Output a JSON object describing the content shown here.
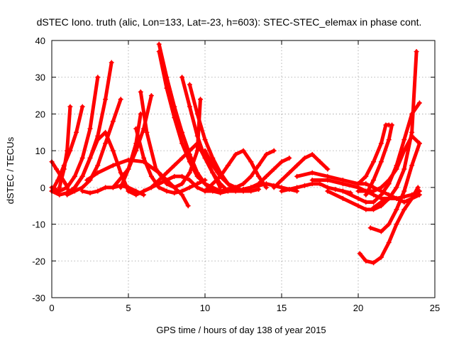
{
  "chart_data": {
    "type": "scatter",
    "title": "dSTEC Iono. truth (alic, Lon=133, Lat=-23, h=603): STEC-STEC_elemax in phase cont.",
    "xlabel": "GPS time / hours of day 138 of year 2015",
    "ylabel": "dSTEC  / TECUs",
    "xlim": [
      0,
      25
    ],
    "ylim": [
      -30,
      40
    ],
    "xticks": [
      0,
      5,
      10,
      15,
      20,
      25
    ],
    "yticks": [
      -30,
      -20,
      -10,
      0,
      10,
      20,
      30,
      40
    ],
    "grid": true,
    "marker": "+",
    "color": "#ff0000",
    "series": [
      {
        "x": [
          0,
          0.3,
          0.6,
          0.9,
          1.1
        ],
        "y": [
          7,
          5,
          3,
          1,
          -1
        ]
      },
      {
        "x": [
          0,
          0.4,
          0.8,
          1.2,
          1.6,
          2.0
        ],
        "y": [
          -1,
          2,
          6,
          10,
          15,
          22
        ]
      },
      {
        "x": [
          0,
          0.5,
          1.0,
          1.5,
          2.0,
          2.5,
          3.0
        ],
        "y": [
          0,
          -1,
          0,
          3,
          8,
          16,
          30
        ]
      },
      {
        "x": [
          0,
          0.5,
          1.0,
          1.5,
          2.0,
          2.5,
          3.0,
          3.5,
          3.9
        ],
        "y": [
          -1,
          -2,
          -1.5,
          0,
          3,
          8,
          14,
          24,
          34
        ]
      },
      {
        "x": [
          0.5,
          0.8,
          1.0,
          1.2
        ],
        "y": [
          0,
          5,
          10,
          22
        ]
      },
      {
        "x": [
          1.0,
          1.5,
          2.0,
          2.5,
          3.0,
          3.5,
          4.0,
          4.5
        ],
        "y": [
          -2,
          -1,
          0,
          2,
          6,
          12,
          18,
          24
        ]
      },
      {
        "x": [
          1.5,
          2.0,
          2.5,
          3.0,
          3.5,
          4.0,
          4.5,
          5.0
        ],
        "y": [
          0,
          3,
          8,
          13,
          15,
          10,
          4,
          -1
        ]
      },
      {
        "x": [
          2.0,
          2.5,
          3.0,
          3.5,
          4.0,
          4.5,
          5.0,
          5.5,
          6.0
        ],
        "y": [
          -1,
          -1.5,
          -1,
          0,
          0,
          0.5,
          0,
          -1,
          -2
        ]
      },
      {
        "x": [
          2.3,
          3,
          4,
          5,
          6,
          7,
          8,
          8.5,
          8.9
        ],
        "y": [
          2,
          4,
          6,
          7.5,
          7,
          4,
          0,
          -2,
          -5
        ]
      },
      {
        "x": [
          4,
          5,
          5.5,
          6,
          6.5
        ],
        "y": [
          0,
          5,
          10,
          16,
          25
        ]
      },
      {
        "x": [
          4.5,
          5,
          5.5,
          5.8
        ],
        "y": [
          0,
          5,
          12,
          20
        ]
      },
      {
        "x": [
          5,
          5.5,
          6,
          6.5,
          7,
          7.5,
          8,
          8.5,
          9,
          9.5,
          10,
          10.5
        ],
        "y": [
          -1,
          -2,
          -1,
          0,
          1,
          2,
          3,
          3,
          2,
          0,
          -1,
          -1
        ]
      },
      {
        "x": [
          5.5,
          6,
          6.5,
          7,
          7.5,
          8,
          8.5,
          9,
          9.5,
          10
        ],
        "y": [
          16,
          8,
          3,
          0,
          -1,
          -1.5,
          -1,
          0,
          1,
          2
        ]
      },
      {
        "x": [
          5.8,
          6.2,
          6.8,
          7.5,
          8,
          8.5,
          9,
          9.5,
          9.7
        ],
        "y": [
          26,
          15,
          5,
          1,
          0,
          1,
          4,
          10,
          24
        ]
      },
      {
        "x": [
          6,
          6.5,
          7,
          7.5,
          8,
          8.5,
          9,
          9.5,
          10,
          10.5,
          11
        ],
        "y": [
          -1,
          0,
          2,
          4,
          6,
          8,
          10,
          12,
          8,
          4,
          0
        ]
      },
      {
        "x": [
          7,
          7.5,
          8,
          8.5,
          9,
          9.5,
          10,
          10.5,
          11,
          11.5
        ],
        "y": [
          39,
          30,
          22,
          15,
          9,
          4,
          1,
          -1,
          -1.5,
          -1
        ]
      },
      {
        "x": [
          7,
          7.5,
          8,
          8.5,
          9,
          9.5,
          10,
          10.5,
          11,
          11.5,
          12
        ],
        "y": [
          37,
          27,
          19,
          12,
          7,
          3,
          1,
          0,
          -1,
          -0.5,
          0
        ]
      },
      {
        "x": [
          8.5,
          9,
          9.5,
          10,
          10.5,
          11,
          11.5,
          12
        ],
        "y": [
          30,
          22,
          14,
          8,
          4,
          1,
          -1,
          -1
        ]
      },
      {
        "x": [
          9,
          9.5,
          10,
          10.5,
          11,
          11.5,
          12,
          12.5
        ],
        "y": [
          28,
          20,
          13,
          8,
          4,
          1,
          -1,
          -1
        ]
      },
      {
        "x": [
          10,
          10.5,
          11,
          11.5,
          12,
          12.5,
          13,
          13.5
        ],
        "y": [
          10,
          6,
          3,
          1,
          0,
          -1,
          -1,
          -0.5
        ]
      },
      {
        "x": [
          10,
          11,
          11.5,
          12,
          12.5,
          13,
          13.5,
          14
        ],
        "y": [
          -1,
          3,
          6,
          9,
          10,
          7,
          3,
          0
        ]
      },
      {
        "x": [
          11,
          11.5,
          12,
          12.5,
          13,
          13.5,
          14,
          14.5
        ],
        "y": [
          -1,
          -1,
          0,
          1,
          3,
          6,
          9,
          10
        ]
      },
      {
        "x": [
          12,
          12.5,
          13,
          13.5,
          14,
          14.5,
          15,
          15.5
        ],
        "y": [
          -1,
          -0.5,
          0,
          1,
          3,
          5,
          7,
          8
        ]
      },
      {
        "x": [
          12.5,
          13,
          13.5,
          14,
          14.5,
          15,
          15.5,
          16
        ],
        "y": [
          -0.5,
          0,
          0.5,
          1,
          0.5,
          0,
          -0.5,
          -1
        ]
      },
      {
        "x": [
          14.5,
          15,
          15.5,
          16,
          16.5,
          17,
          17.5,
          18
        ],
        "y": [
          0,
          2,
          4,
          6,
          8,
          9,
          7,
          5
        ]
      },
      {
        "x": [
          15,
          15.5,
          16,
          16.5,
          17,
          17.5,
          18,
          18.5,
          19,
          19.5
        ],
        "y": [
          -1,
          -0.5,
          0,
          0.5,
          1,
          1,
          0,
          -0.5,
          -1,
          -1.5
        ]
      },
      {
        "x": [
          16,
          17,
          18,
          19,
          20,
          20.5,
          21,
          21.5,
          22,
          22.5,
          23,
          23.5,
          24
        ],
        "y": [
          3,
          4,
          3,
          2,
          1,
          1,
          0,
          -1,
          -2,
          -3,
          -4,
          -3,
          -2
        ]
      },
      {
        "x": [
          17,
          18,
          19,
          20,
          20.5,
          21,
          21.5,
          22
        ],
        "y": [
          2,
          2,
          1,
          0,
          -1,
          -2,
          -3,
          -3
        ]
      },
      {
        "x": [
          18,
          19,
          20,
          20.5,
          21,
          21.5,
          22,
          22.5,
          23,
          23.5,
          23.8
        ],
        "y": [
          -1,
          -3,
          -5,
          -6,
          -6,
          -5,
          -3,
          0,
          5,
          15,
          37
        ]
      },
      {
        "x": [
          19,
          20,
          20.5,
          21,
          21.5,
          22,
          22.5,
          23,
          23.5,
          24
        ],
        "y": [
          -1,
          -3,
          -4,
          -4,
          -2,
          1,
          6,
          13,
          20,
          23
        ]
      },
      {
        "x": [
          20,
          20.5,
          21,
          21.5,
          22,
          22.5,
          23,
          23.5,
          24
        ],
        "y": [
          -1,
          -1,
          -1,
          0,
          2,
          5,
          10,
          14,
          12
        ]
      },
      {
        "x": [
          20,
          20.5,
          21,
          21.5,
          21.8,
          22
        ],
        "y": [
          1,
          3,
          7,
          12,
          17,
          17
        ]
      },
      {
        "x": [
          20.5,
          21,
          21.5,
          22,
          22.2
        ],
        "y": [
          -2,
          2,
          7,
          13,
          17
        ]
      },
      {
        "x": [
          21,
          21.5,
          22,
          22.5,
          23,
          23.5,
          24
        ],
        "y": [
          -5.5,
          -4,
          -3,
          -3,
          -2.5,
          -2,
          -1
        ]
      },
      {
        "x": [
          20.1,
          20.5,
          21,
          21.5,
          22,
          22.5,
          23,
          23.5,
          23.9
        ],
        "y": [
          -18,
          -20,
          -20.5,
          -19,
          -15,
          -10,
          -6,
          -3,
          0
        ]
      },
      {
        "x": [
          20.8,
          21.5,
          22,
          22.5,
          23,
          23.5,
          24
        ],
        "y": [
          -11,
          -12,
          -10,
          -6,
          -1,
          6,
          12
        ]
      }
    ]
  }
}
